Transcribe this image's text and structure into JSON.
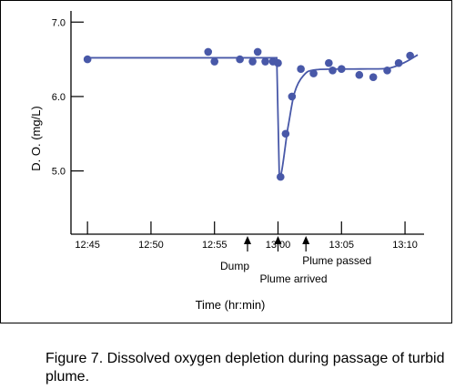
{
  "chart_data": {
    "type": "scatter",
    "xlabel": "Time (hr:min)",
    "ylabel": "D. O. (mg/L)",
    "x_ticks": [
      "12:45",
      "12:50",
      "12:55",
      "13:00",
      "13:05",
      "13:10"
    ],
    "y_ticks": [
      "5.0",
      "6.0",
      "7.0"
    ],
    "xlim": [
      "12:43.7",
      "13:11.5"
    ],
    "ylim": [
      4.15,
      7.15
    ],
    "grid": false,
    "points": [
      {
        "x": "12:45.0",
        "y": 6.5
      },
      {
        "x": "12:54.5",
        "y": 6.6
      },
      {
        "x": "12:55.0",
        "y": 6.47
      },
      {
        "x": "12:57.0",
        "y": 6.5
      },
      {
        "x": "12:58.0",
        "y": 6.47
      },
      {
        "x": "12:58.4",
        "y": 6.6
      },
      {
        "x": "12:59.0",
        "y": 6.47
      },
      {
        "x": "12:59.6",
        "y": 6.47
      },
      {
        "x": "13:00.0",
        "y": 6.45
      },
      {
        "x": "13:00.2",
        "y": 4.92
      },
      {
        "x": "13:00.6",
        "y": 5.5
      },
      {
        "x": "13:01.1",
        "y": 6.0
      },
      {
        "x": "13:01.8",
        "y": 6.37
      },
      {
        "x": "13:02.8",
        "y": 6.31
      },
      {
        "x": "13:04.0",
        "y": 6.45
      },
      {
        "x": "13:04.3",
        "y": 6.35
      },
      {
        "x": "13:05.0",
        "y": 6.37
      },
      {
        "x": "13:06.4",
        "y": 6.29
      },
      {
        "x": "13:07.5",
        "y": 6.26
      },
      {
        "x": "13:08.6",
        "y": 6.35
      },
      {
        "x": "13:09.5",
        "y": 6.45
      },
      {
        "x": "13:10.4",
        "y": 6.55
      }
    ],
    "fit_line": [
      {
        "x": "12:45.0",
        "y": 6.52
      },
      {
        "x": "12:59.9",
        "y": 6.52
      },
      {
        "x": "13:00.1",
        "y": 4.95
      },
      {
        "x": "13:00.8",
        "y": 5.6
      },
      {
        "x": "13:01.3",
        "y": 6.05
      },
      {
        "x": "13:02.0",
        "y": 6.28
      },
      {
        "x": "13:03.0",
        "y": 6.36
      },
      {
        "x": "13:06.5",
        "y": 6.37
      },
      {
        "x": "13:08.7",
        "y": 6.38
      },
      {
        "x": "13:10.0",
        "y": 6.46
      },
      {
        "x": "13:11.0",
        "y": 6.56
      }
    ],
    "annotations": [
      {
        "label": "Dump",
        "x": "12:57.6"
      },
      {
        "label": "Plume arrived",
        "x": "13:00.0"
      },
      {
        "label": "Plume passed",
        "x": "13:02.2"
      }
    ],
    "colors": {
      "series": "#4858a8",
      "axes": "#000000"
    }
  },
  "caption": "Figure 7.  Dissolved oxygen depletion during passage of turbid plume."
}
